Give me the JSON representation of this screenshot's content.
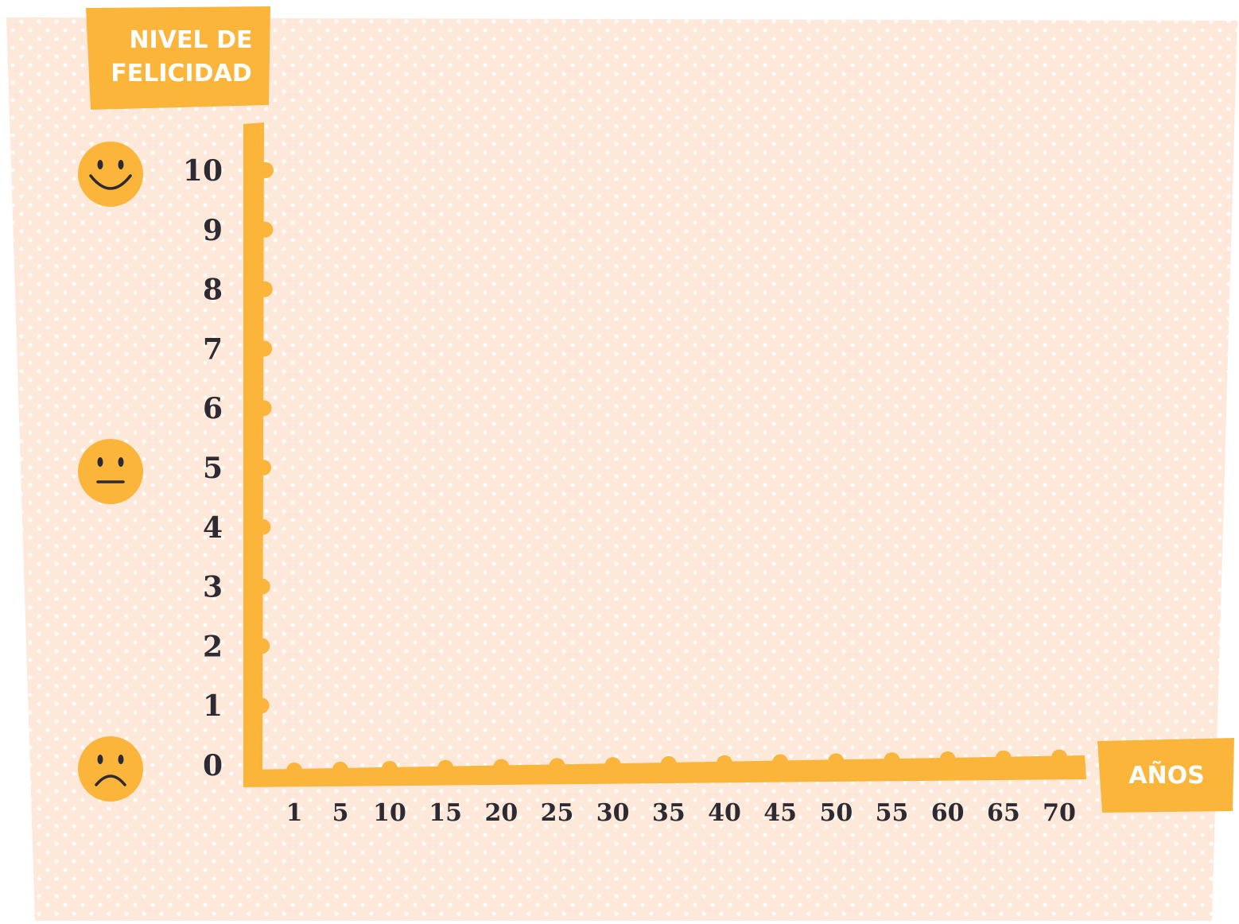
{
  "colors": {
    "background": "#fde8da",
    "dots": "#ffffff",
    "accent": "#fbb53b",
    "text_dark": "#2c2b33",
    "label_text": "#ffffff"
  },
  "chart_data": {
    "type": "line",
    "title": "",
    "ylabel_lines": [
      "NIVEL DE",
      "FELICIDAD"
    ],
    "xlabel": "AÑOS",
    "y_ticks": [
      "0",
      "1",
      "2",
      "3",
      "4",
      "5",
      "6",
      "7",
      "8",
      "9",
      "10"
    ],
    "x_ticks": [
      "1",
      "5",
      "10",
      "15",
      "20",
      "25",
      "30",
      "35",
      "40",
      "45",
      "50",
      "55",
      "60",
      "65",
      "70"
    ],
    "ylim": [
      0,
      10
    ],
    "series": [],
    "grid": false,
    "legend": "none",
    "face_icons": [
      {
        "level": 10,
        "icon": "happy-face-icon"
      },
      {
        "level": 5,
        "icon": "neutral-face-icon"
      },
      {
        "level": 0,
        "icon": "sad-face-icon"
      }
    ]
  }
}
